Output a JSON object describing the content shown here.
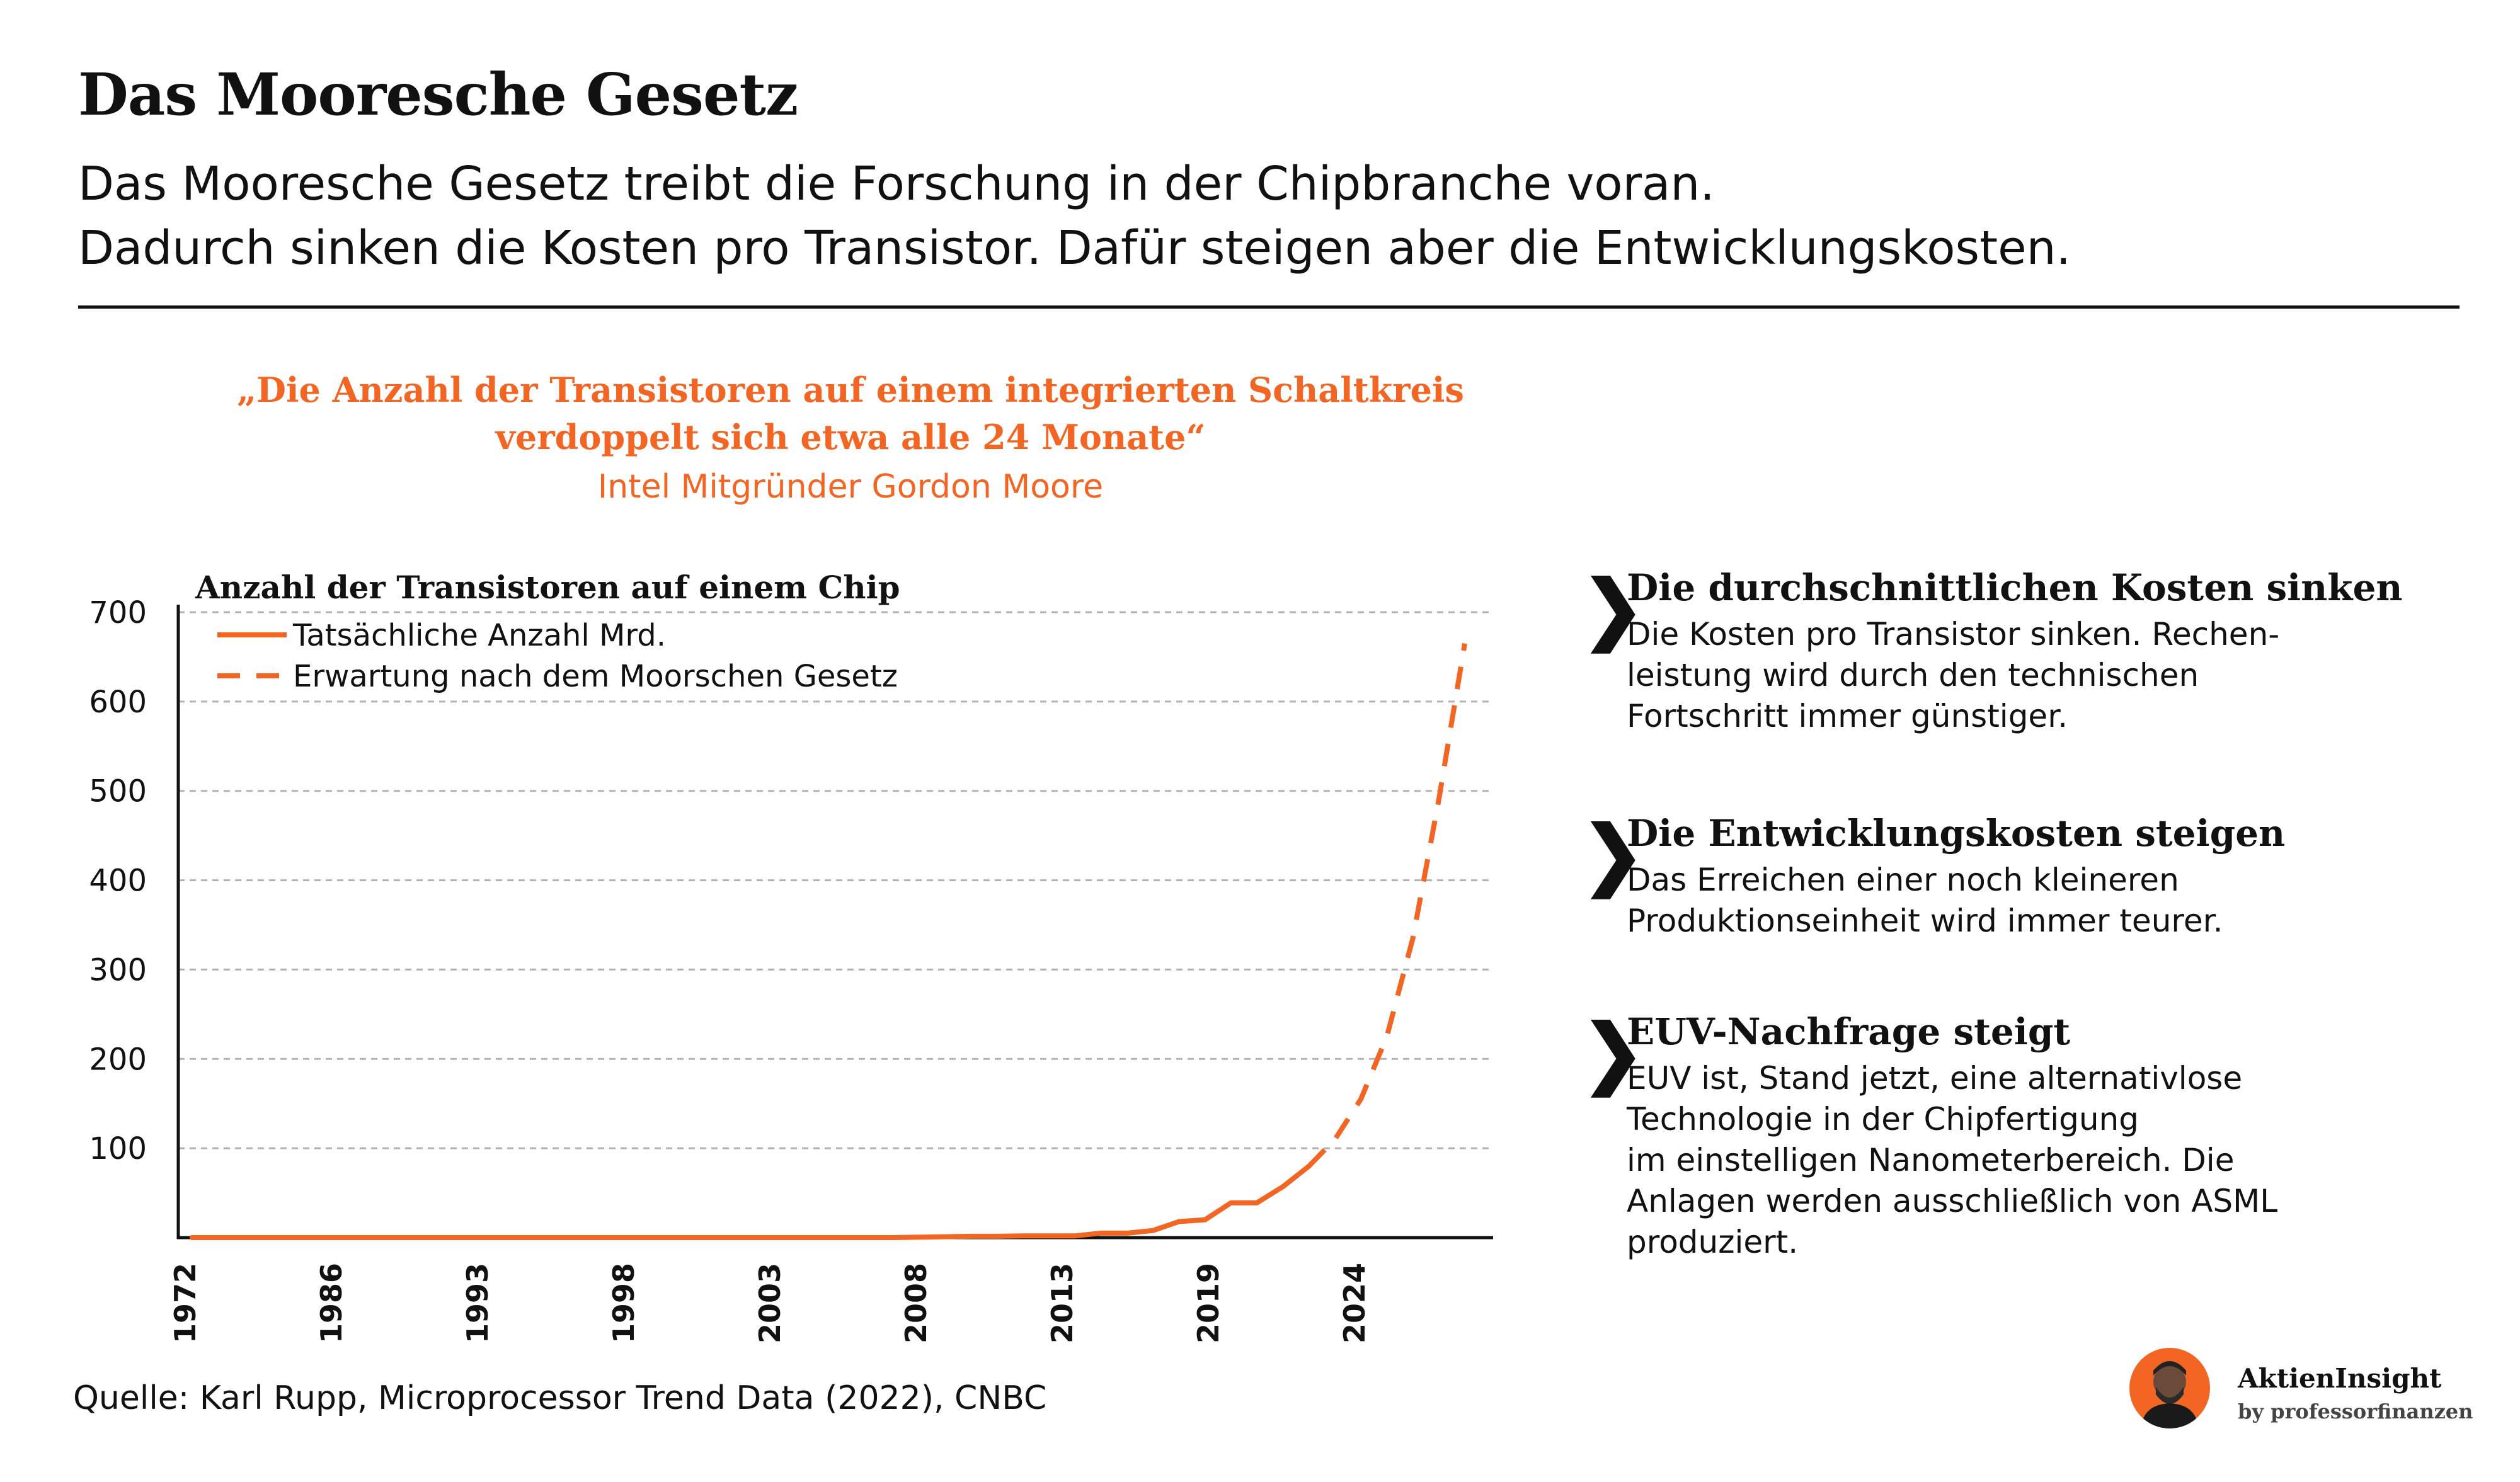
{
  "header": {
    "title": "Das Mooresche Gesetz",
    "subtitle_line1": "Das Mooresche Gesetz treibt die Forschung in der Chipbranche voran.",
    "subtitle_line2": "Dadurch sinken die Kosten pro Transistor. Dafür steigen aber die Entwicklungskosten."
  },
  "quote": {
    "line1": "„Die Anzahl der Transistoren auf einem integrierten Schaltkreis",
    "line2": "verdoppelt sich etwa alle 24 Monate“",
    "author": "Intel Mitgründer Gordon Moore"
  },
  "colors": {
    "accent": "#f26522",
    "text": "#111111",
    "grid": "#b3b3b3"
  },
  "chart_data": {
    "type": "line",
    "title": "Anzahl der Transistoren auf einem Chip",
    "xlabel": "",
    "ylabel": "",
    "ylim": [
      0,
      700
    ],
    "yticks": [
      100,
      200,
      300,
      400,
      500,
      600,
      700
    ],
    "x_tick_labels": [
      "1972",
      "1986",
      "1993",
      "1998",
      "2003",
      "2008",
      "2013",
      "2019",
      "2024"
    ],
    "grid": true,
    "legend_position": "top-left",
    "series": [
      {
        "name": "Tatsächliche Anzahl Mrd.",
        "style": "solid",
        "color": "#f26522",
        "points": [
          [
            0,
            0
          ],
          [
            1,
            0
          ],
          [
            2,
            0
          ],
          [
            3,
            0
          ],
          [
            4,
            0
          ],
          [
            5,
            0
          ],
          [
            6,
            0
          ],
          [
            7,
            0
          ],
          [
            8,
            0
          ],
          [
            9,
            0
          ],
          [
            10,
            0
          ],
          [
            11,
            0
          ],
          [
            12,
            0
          ],
          [
            13,
            0
          ],
          [
            14,
            0
          ],
          [
            15,
            0
          ],
          [
            16,
            0
          ],
          [
            17,
            0
          ],
          [
            18,
            0
          ],
          [
            19,
            0
          ],
          [
            20,
            0
          ],
          [
            21,
            0
          ],
          [
            22,
            0
          ],
          [
            23,
            0
          ],
          [
            24,
            0
          ],
          [
            25,
            0
          ],
          [
            26,
            0
          ],
          [
            27,
            0
          ],
          [
            28,
            0.5
          ],
          [
            29,
            1
          ],
          [
            30,
            1.5
          ],
          [
            31,
            1.5
          ],
          [
            32,
            2
          ],
          [
            33,
            2
          ],
          [
            34,
            2
          ],
          [
            35,
            5
          ],
          [
            36,
            5
          ],
          [
            37,
            8
          ],
          [
            38,
            18
          ],
          [
            39,
            20
          ],
          [
            40,
            39
          ],
          [
            41,
            39
          ],
          [
            42,
            57
          ],
          [
            43,
            80
          ]
        ]
      },
      {
        "name": "Erwartung nach dem Moorschen Gesetz",
        "style": "dashed",
        "color": "#f26522",
        "points": [
          [
            43,
            80
          ],
          [
            44,
            110
          ],
          [
            45,
            155
          ],
          [
            46,
            225
          ],
          [
            47,
            335
          ],
          [
            48,
            490
          ],
          [
            49,
            665
          ]
        ]
      }
    ]
  },
  "points": [
    {
      "chevron": "❯",
      "heading": "Die durchschnittlichen Kosten sinken",
      "body": "Die Kosten pro Transistor sinken. Rechen-\nleistung wird durch den technischen\nFortschritt immer günstiger."
    },
    {
      "chevron": "❯",
      "heading": "Die Entwicklungskosten steigen",
      "body": "Das Erreichen einer noch kleineren\nProduktionseinheit wird immer teurer."
    },
    {
      "chevron": "❯",
      "heading": "EUV-Nachfrage steigt",
      "body": "EUV ist, Stand jetzt, eine alternativlose\nTechnologie in der Chipfertigung\nim einstelligen Nanometerbereich. Die\nAnlagen werden ausschließlich von ASML\nproduziert."
    }
  ],
  "footer": {
    "source": "Quelle: Karl Rupp, Microprocessor Trend Data (2022), CNBC",
    "brand_name": "AktienInsight",
    "brand_sub": "by professorfinanzen"
  }
}
